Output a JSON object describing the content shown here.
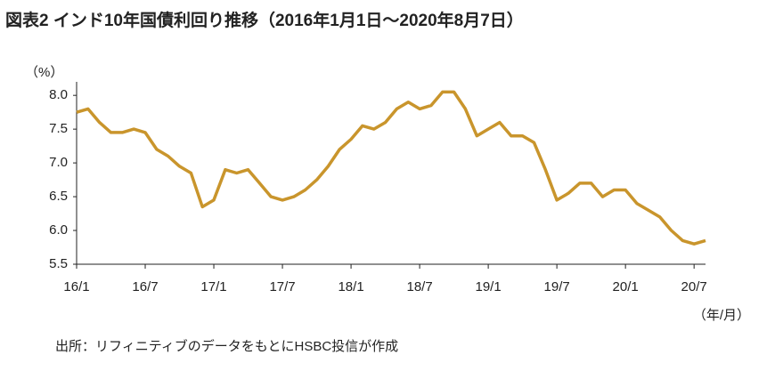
{
  "chart_data": {
    "type": "line",
    "title": "図表2 インド10年国債利回り推移（2016年1月1日～2020年8月7日）",
    "y_unit": "（%）",
    "x_unit": "（年/月）",
    "note": "出所：リフィニティブのデータをもとにHSBC投信が作成",
    "x": [
      "2016-01",
      "2016-02",
      "2016-03",
      "2016-04",
      "2016-05",
      "2016-06",
      "2016-07",
      "2016-08",
      "2016-09",
      "2016-10",
      "2016-11",
      "2016-12",
      "2017-01",
      "2017-02",
      "2017-03",
      "2017-04",
      "2017-05",
      "2017-06",
      "2017-07",
      "2017-08",
      "2017-09",
      "2017-10",
      "2017-11",
      "2017-12",
      "2018-01",
      "2018-02",
      "2018-03",
      "2018-04",
      "2018-05",
      "2018-06",
      "2018-07",
      "2018-08",
      "2018-09",
      "2018-10",
      "2018-11",
      "2018-12",
      "2019-01",
      "2019-02",
      "2019-03",
      "2019-04",
      "2019-05",
      "2019-06",
      "2019-07",
      "2019-08",
      "2019-09",
      "2019-10",
      "2019-11",
      "2019-12",
      "2020-01",
      "2020-02",
      "2020-03",
      "2020-04",
      "2020-05",
      "2020-06",
      "2020-07",
      "2020-08"
    ],
    "series": [
      {
        "name": "インド10年国債利回り",
        "color": "#c9952c",
        "values": [
          7.75,
          7.8,
          7.6,
          7.45,
          7.45,
          7.5,
          7.45,
          7.2,
          7.1,
          6.95,
          6.85,
          6.35,
          6.45,
          6.9,
          6.85,
          6.9,
          6.7,
          6.5,
          6.45,
          6.5,
          6.6,
          6.75,
          6.95,
          7.2,
          7.35,
          7.55,
          7.5,
          7.6,
          7.8,
          7.9,
          7.8,
          7.85,
          8.05,
          8.05,
          7.8,
          7.4,
          7.5,
          7.6,
          7.4,
          7.4,
          7.3,
          6.9,
          6.45,
          6.55,
          6.7,
          6.7,
          6.5,
          6.6,
          6.6,
          6.4,
          6.3,
          6.2,
          6.0,
          5.85,
          5.8,
          5.85
        ]
      }
    ],
    "xlim": [
      "2016-01",
      "2020-08"
    ],
    "xticks": [
      {
        "value": "2016-01",
        "label": "16/1"
      },
      {
        "value": "2016-07",
        "label": "16/7"
      },
      {
        "value": "2017-01",
        "label": "17/1"
      },
      {
        "value": "2017-07",
        "label": "17/7"
      },
      {
        "value": "2018-01",
        "label": "18/1"
      },
      {
        "value": "2018-07",
        "label": "18/7"
      },
      {
        "value": "2019-01",
        "label": "19/1"
      },
      {
        "value": "2019-07",
        "label": "19/7"
      },
      {
        "value": "2020-01",
        "label": "20/1"
      },
      {
        "value": "2020-07",
        "label": "20/7"
      }
    ],
    "ylim": [
      5.5,
      8.2
    ],
    "yticks": [
      5.5,
      {
        "value": 6,
        "label": "6.0"
      },
      6.5,
      {
        "value": 7,
        "label": "7.0"
      },
      7.5,
      {
        "value": 8,
        "label": "8.0"
      }
    ],
    "grid": false
  }
}
